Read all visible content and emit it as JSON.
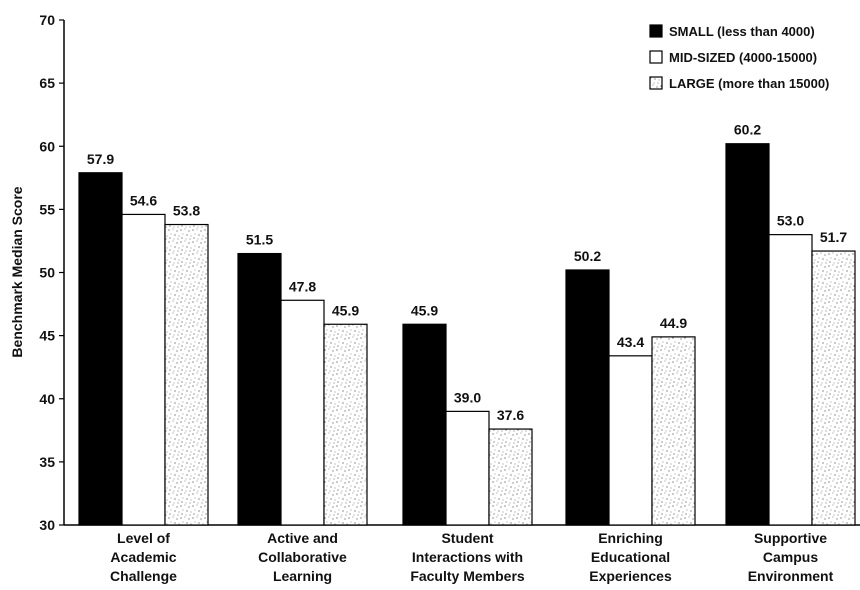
{
  "chart_data": {
    "type": "bar",
    "title": "",
    "xlabel": "",
    "ylabel": "Benchmark Median Score",
    "ylim": [
      30,
      70
    ],
    "yticks": [
      30,
      35,
      40,
      45,
      50,
      55,
      60,
      65,
      70
    ],
    "grid": false,
    "legend_position": "top-right",
    "categories": [
      [
        "Level of",
        "Academic",
        "Challenge"
      ],
      [
        "Active and",
        "Collaborative",
        "Learning"
      ],
      [
        "Student",
        "Interactions with",
        "Faculty Members"
      ],
      [
        "Enriching",
        "Educational",
        "Experiences"
      ],
      [
        "Supportive",
        "Campus",
        "Environment"
      ]
    ],
    "series": [
      {
        "name": "SMALL (less than 4000)",
        "values": [
          57.9,
          51.5,
          45.9,
          50.2,
          60.2
        ],
        "color": "#000000",
        "pattern": "solid"
      },
      {
        "name": "MID-SIZED (4000-15000)",
        "values": [
          54.6,
          47.8,
          39.0,
          43.4,
          53.0
        ],
        "color": "#ffffff",
        "pattern": "solid"
      },
      {
        "name": "LARGE (more than 15000)",
        "values": [
          53.8,
          45.9,
          37.6,
          44.9,
          51.7
        ],
        "color": "#ffffff",
        "pattern": "speckled"
      }
    ],
    "value_labels": [
      [
        "57.9",
        "54.6",
        "53.8"
      ],
      [
        "51.5",
        "47.8",
        "45.9"
      ],
      [
        "45.9",
        "39.0",
        "37.6"
      ],
      [
        "50.2",
        "43.4",
        "44.9"
      ],
      [
        "60.2",
        "53.0",
        "51.7"
      ]
    ]
  }
}
